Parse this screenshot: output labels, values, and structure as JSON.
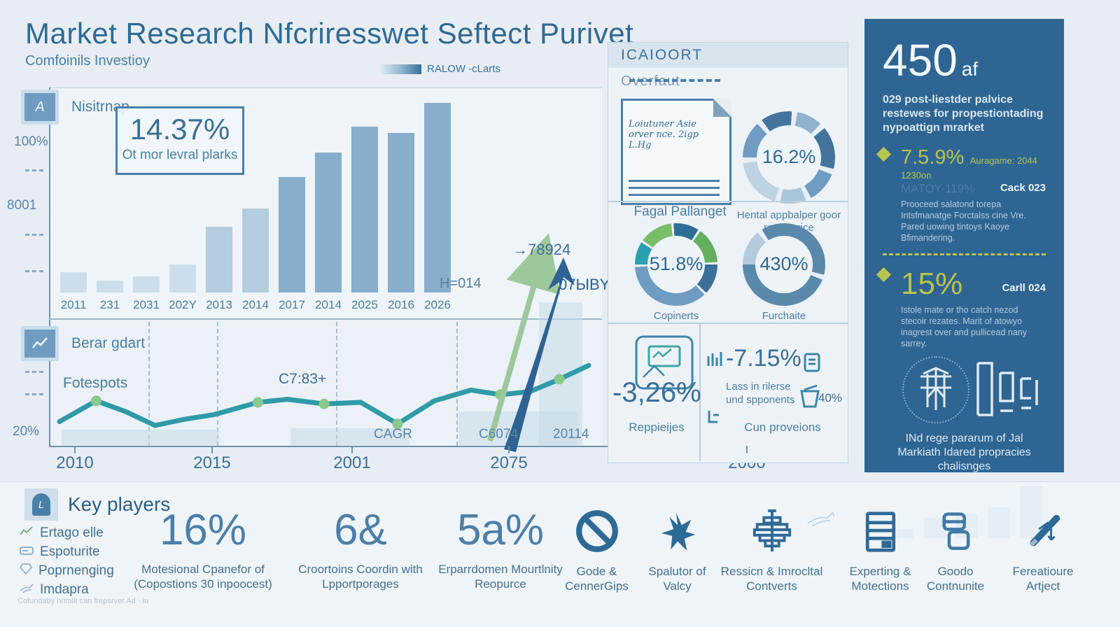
{
  "header": {
    "title": "Market Research Nfcriresswet Seftect Purivet",
    "subtitle": "Comfoinils Investioy",
    "legend_label": "RALOW -cLarts"
  },
  "bar_panel": {
    "icon_letter": "A",
    "label": "Nisitrnap",
    "stat_value": "14.37%",
    "stat_caption": "Ot mor levral plarks",
    "y_tick_top": "100%",
    "y_tick_mid": "8001",
    "annotation": "H=014"
  },
  "line_panel": {
    "label": "Berar gdart",
    "inner_label": "Fotespots",
    "y_tick": "20%",
    "annotation_mid": "C7:83+",
    "annotation_green": "→78924",
    "annotation_blue": "07ЫBY",
    "axis_note_1": "CAGR",
    "axis_note_2": "C6074",
    "axis_note_3": "20114"
  },
  "report_panel": {
    "header": "ICAIOORT",
    "subheader": "Overfaut",
    "note_line_1": "Loiutuner Asie",
    "note_line_2": "orver nce. 2igp",
    "note_line_3": "L.Hg",
    "section2_title": "Fagal Pallanget",
    "donuts": [
      {
        "value": "16.2%",
        "caption": "Hental appbalper goor rantnerrice",
        "segments": [
          [
            13,
            "#6f9cc0"
          ],
          [
            2,
            "#e7eef4"
          ],
          [
            11,
            "#44749c"
          ],
          [
            2,
            "#e7eef4"
          ],
          [
            9,
            "#8fb3cd"
          ],
          [
            2,
            "#e7eef4"
          ],
          [
            15,
            "#44749c"
          ],
          [
            2,
            "#e7eef4"
          ],
          [
            11,
            "#6f9cc0"
          ],
          [
            2,
            "#e7eef4"
          ],
          [
            9,
            "#a9c5d9"
          ],
          [
            2,
            "#e7eef4"
          ],
          [
            18,
            "#bdd3e2"
          ],
          [
            2,
            "#e7eef4"
          ]
        ]
      },
      {
        "value": "51.8%",
        "caption": "Copinerts",
        "segments": [
          [
            9,
            "#2aa0b0"
          ],
          [
            1,
            "#e7eef4"
          ],
          [
            13,
            "#79bd68"
          ],
          [
            1,
            "#e7eef4"
          ],
          [
            10,
            "#2e6e96"
          ],
          [
            1,
            "#e7eef4"
          ],
          [
            14,
            "#63b05e"
          ],
          [
            1,
            "#e7eef4"
          ],
          [
            12,
            "#3c6f99"
          ],
          [
            1,
            "#e7eef4"
          ],
          [
            36,
            "#6f9cc0"
          ],
          [
            1,
            "#e7eef4"
          ]
        ]
      },
      {
        "value": "430%",
        "caption": "Furchaite",
        "segments": [
          [
            14,
            "#b3cbdc"
          ],
          [
            2,
            "#e7eef4"
          ],
          [
            38,
            "#5b89ab"
          ],
          [
            2,
            "#e7eef4"
          ],
          [
            44,
            "#5b89ab"
          ]
        ]
      }
    ],
    "stat_left_value": "-3,26%",
    "stat_left_caption": "Reppieijes",
    "stat_right_value": "-7.15%",
    "stat_right_caption": "Lass in rilerse und spponents",
    "stat_right_subvalue": "40%",
    "stat_right_caption2": "Cun proveions"
  },
  "sidebar": {
    "bg_color": "#2e6593",
    "accent_color": "#b7c44d",
    "big_value": "450",
    "big_suffix": "af",
    "intro": "029 post-liestder palvice restewes for propestiontading nypoattign mrarket",
    "sections": [
      {
        "value": "7.5.9%",
        "value_note": "Auragame: 2044 1230on",
        "ghost": "MATOY-119%",
        "tag": "Cack 023",
        "body": "Prooceed salatond torepa Intsfmanatge Forctalss cine Vre. Pared uowing tintoys Kaoye Bfimandering."
      },
      {
        "value": "15%",
        "value_note": "",
        "ghost": "",
        "tag": "Carll 024",
        "body": "Istole mate or tho catch nezod stecoir rezates. Marit of atowyo inagrest over and pullicead nany sarrey."
      }
    ],
    "caption": "INd rege pararum of Jal Markiath Idared propracies chalisnges"
  },
  "key_players": {
    "heading": "Key players",
    "players": [
      "Ertago elle",
      "Espoturite",
      "Poprnenging",
      "Imdapra"
    ],
    "footnote": "Cofundaby hntalit can frepsrver Ad · iu"
  },
  "bottom_stats": [
    {
      "value": "16%",
      "caption": "Motesional Cpanefor of (Copostions 30 inpoocest)"
    },
    {
      "value": "6&",
      "caption": "Croortoins Coordin with Lpportporages"
    },
    {
      "value": "5a%",
      "caption": "Erparrdomen Mourtlnity Reopurce"
    }
  ],
  "features": [
    {
      "icon": "prohibition-icon",
      "label": "Gode & CennerGips"
    },
    {
      "icon": "star-icon",
      "label": "Spalutor of Valcy"
    },
    {
      "icon": "ornament-icon",
      "label": "Ressicn & Imrocltal Contverts"
    },
    {
      "icon": "server-icon",
      "label": "Experting & Motections"
    },
    {
      "icon": "cards-icon",
      "label": "Goodo Contnunite"
    },
    {
      "icon": "pen-icon",
      "label": "Fereatioure Artject"
    }
  ],
  "chart_data": [
    {
      "type": "bar",
      "title": "Nisitrnap",
      "categories": [
        "2011",
        "231",
        "2031",
        "202Y",
        "2013",
        "2014",
        "2017",
        "2014",
        "2025",
        "2016",
        "2026"
      ],
      "values": [
        10,
        6,
        8,
        14,
        33,
        42,
        58,
        70,
        83,
        80,
        95
      ],
      "ylim": [
        0,
        100
      ],
      "y_ticks": [
        "100%",
        "8001"
      ],
      "annotation": "H=014",
      "highlight_stat": "14.37%",
      "highlight_caption": "Ot mor levral plarks"
    },
    {
      "type": "line",
      "title": "Berar gdart",
      "x_axis_labels": [
        "2010",
        "2015",
        "2001",
        "2075",
        "2000"
      ],
      "points_pct": [
        [
          0,
          75
        ],
        [
          5,
          48
        ],
        [
          9,
          62
        ],
        [
          13,
          80
        ],
        [
          17,
          72
        ],
        [
          21,
          66
        ],
        [
          27,
          50
        ],
        [
          31,
          46
        ],
        [
          36,
          52
        ],
        [
          41,
          50
        ],
        [
          46,
          78
        ],
        [
          51,
          48
        ],
        [
          56,
          34
        ],
        [
          60,
          40
        ],
        [
          64,
          36
        ],
        [
          68,
          20
        ],
        [
          72,
          2
        ]
      ],
      "dot_indexes": [
        1,
        6,
        8,
        10,
        13,
        15
      ],
      "annotations": [
        "Fotespots",
        "C7:83+",
        "→78924",
        "07ЫBY",
        "CAGR",
        "C6074",
        "20114",
        "20%"
      ]
    },
    {
      "type": "donut",
      "values": [
        16.2,
        51.8,
        430
      ],
      "labels": [
        "Hental appbalper goor rantnerrice",
        "Copinerts",
        "Furchaite"
      ]
    },
    {
      "type": "bar",
      "title": "sidebar-mini",
      "categories": [
        "",
        "",
        "",
        "",
        ""
      ],
      "values": [
        14,
        30,
        36,
        46,
        78
      ]
    }
  ]
}
